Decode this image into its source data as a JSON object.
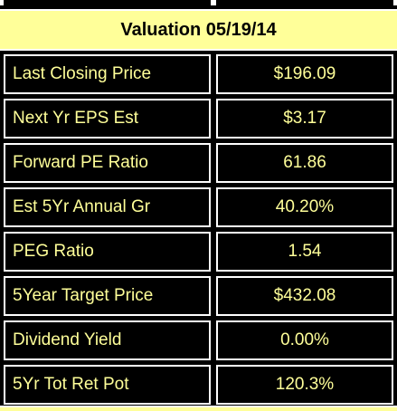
{
  "header": {
    "title": "Valuation 05/19/14"
  },
  "rows": [
    {
      "label": "Last Closing Price",
      "value": "$196.09"
    },
    {
      "label": "Next Yr EPS Est",
      "value": "$3.17"
    },
    {
      "label": "Forward PE Ratio",
      "value": "61.86"
    },
    {
      "label": "Est 5Yr Annual Gr",
      "value": "40.20%"
    },
    {
      "label": "PEG Ratio",
      "value": "1.54"
    },
    {
      "label": "5Year Target Price",
      "value": "$432.08"
    },
    {
      "label": "Dividend Yield",
      "value": "0.00%"
    },
    {
      "label": "5Yr Tot Ret Pot",
      "value": "120.3%"
    }
  ],
  "colors": {
    "header_bg": "#ffff99",
    "text": "#ffff99",
    "cell_bg": "#000000",
    "border": "#ffffff"
  }
}
